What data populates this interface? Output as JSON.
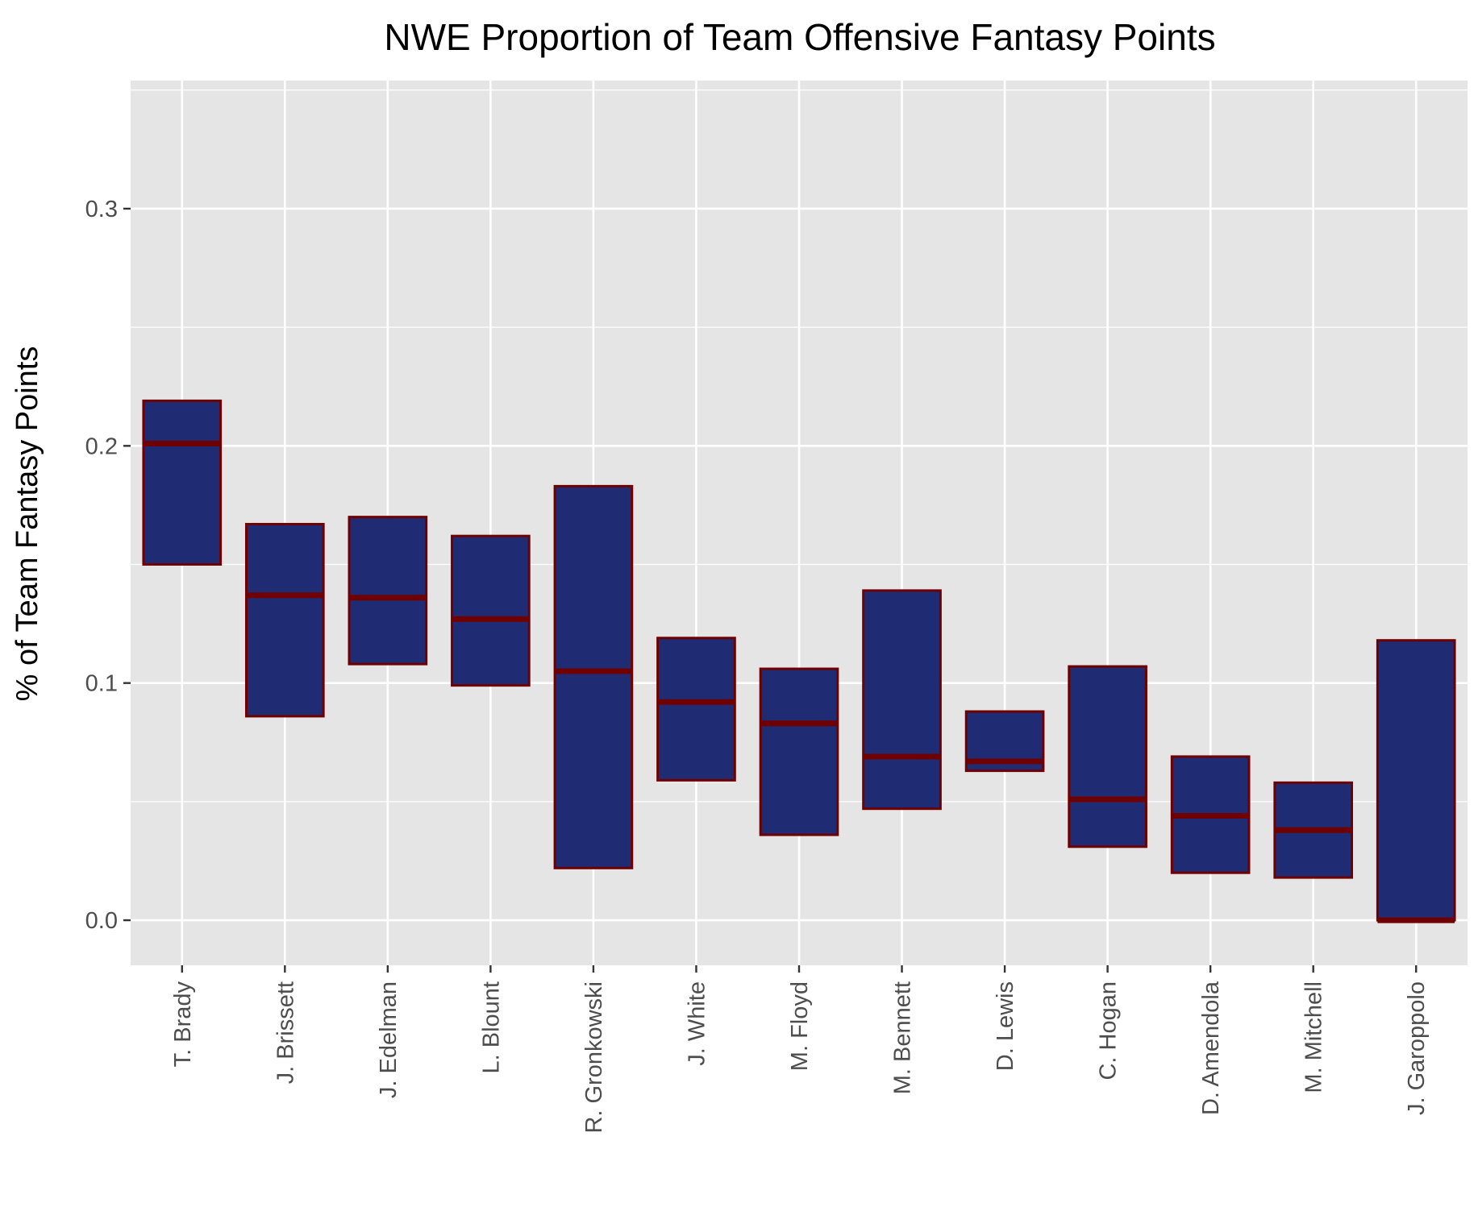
{
  "chart_data": {
    "type": "box",
    "title": "NWE Proportion of Team Offensive Fantasy Points",
    "xlabel": "",
    "ylabel": "% of Team Fantasy Points",
    "ylim": [
      -0.019,
      0.354
    ],
    "yticks": [
      0.0,
      0.1,
      0.2,
      0.3
    ],
    "ytick_labels": [
      "0.0",
      "0.1",
      "0.2",
      "0.3"
    ],
    "grid": true,
    "legend": "none",
    "colors": {
      "panel": "#e5e5e5",
      "grid": "#ffffff",
      "box_fill": "#1f2b73",
      "box_outline": "#700000",
      "median": "#700000"
    },
    "categories": [
      "T. Brady",
      "J. Brissett",
      "J. Edelman",
      "L. Blount",
      "R. Gronkowski",
      "J. White",
      "M. Floyd",
      "M. Bennett",
      "D. Lewis",
      "C. Hogan",
      "D. Amendola",
      "M. Mitchell",
      "J. Garoppolo"
    ],
    "boxes": [
      {
        "q1": 0.15,
        "median": 0.201,
        "q3": 0.219
      },
      {
        "q1": 0.086,
        "median": 0.137,
        "q3": 0.167
      },
      {
        "q1": 0.108,
        "median": 0.136,
        "q3": 0.17
      },
      {
        "q1": 0.099,
        "median": 0.127,
        "q3": 0.162
      },
      {
        "q1": 0.022,
        "median": 0.105,
        "q3": 0.183
      },
      {
        "q1": 0.059,
        "median": 0.092,
        "q3": 0.119
      },
      {
        "q1": 0.036,
        "median": 0.083,
        "q3": 0.106
      },
      {
        "q1": 0.047,
        "median": 0.069,
        "q3": 0.139
      },
      {
        "q1": 0.063,
        "median": 0.067,
        "q3": 0.088
      },
      {
        "q1": 0.031,
        "median": 0.051,
        "q3": 0.107
      },
      {
        "q1": 0.02,
        "median": 0.044,
        "q3": 0.069
      },
      {
        "q1": 0.018,
        "median": 0.038,
        "q3": 0.058
      },
      {
        "q1": 0.0,
        "median": 0.0,
        "q3": 0.118
      }
    ]
  }
}
